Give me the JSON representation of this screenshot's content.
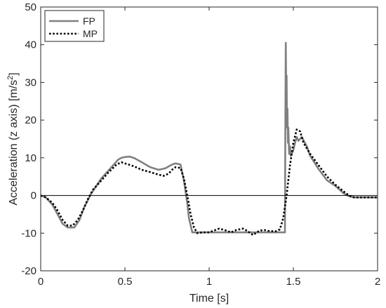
{
  "chart_data": {
    "type": "line",
    "xlabel": "Time [s]",
    "ylabel_main": "Acceleration (z axis) [m/s",
    "ylabel_sup": "2",
    "ylabel_end": "]",
    "xlim": [
      0,
      2
    ],
    "ylim": [
      -20,
      50
    ],
    "xticks": [
      0,
      0.5,
      1,
      1.5,
      2
    ],
    "xtick_labels": [
      "0",
      "0.5",
      "1",
      "1.5",
      "2"
    ],
    "yticks": [
      -20,
      -10,
      0,
      10,
      20,
      30,
      40,
      50
    ],
    "ytick_labels": [
      "-20",
      "-10",
      "0",
      "10",
      "20",
      "30",
      "40",
      "50"
    ],
    "reference_line_y": 0,
    "grid": false,
    "legend_position": "top-left",
    "series": [
      {
        "name": "FP",
        "color": "#808080",
        "style": "solid",
        "x": [
          0,
          0.03,
          0.07,
          0.1,
          0.13,
          0.16,
          0.2,
          0.23,
          0.26,
          0.3,
          0.33,
          0.36,
          0.4,
          0.43,
          0.46,
          0.48,
          0.5,
          0.53,
          0.56,
          0.6,
          0.65,
          0.7,
          0.74,
          0.78,
          0.8,
          0.83,
          0.85,
          0.87,
          0.88,
          0.9,
          0.95,
          1.0,
          1.1,
          1.2,
          1.3,
          1.4,
          1.45,
          1.452,
          1.455,
          1.458,
          1.46,
          1.462,
          1.465,
          1.468,
          1.47,
          1.475,
          1.48,
          1.485,
          1.49,
          1.5,
          1.51,
          1.52,
          1.53,
          1.55,
          1.58,
          1.6,
          1.65,
          1.7,
          1.75,
          1.8,
          1.83,
          1.86,
          1.9,
          1.95,
          2.0
        ],
        "y": [
          0,
          -0.5,
          -2.5,
          -5,
          -7.5,
          -8.5,
          -8.5,
          -6.5,
          -3,
          0.5,
          2.5,
          4.5,
          6.5,
          8,
          9.5,
          10,
          10.2,
          10.3,
          9.8,
          8.8,
          7.5,
          6.8,
          7.2,
          8.2,
          8.5,
          8.2,
          4,
          -2,
          -6,
          -9.8,
          -9.8,
          -9.8,
          -9.8,
          -9.8,
          -9.8,
          -9.8,
          -9.8,
          15,
          40.5,
          25,
          31.8,
          18,
          23,
          14,
          18,
          11,
          13,
          10.5,
          11,
          12,
          14,
          15.5,
          14.5,
          15.5,
          13,
          10.5,
          7,
          4,
          2.5,
          0.5,
          -0.2,
          -0.5,
          -0.5,
          -0.5,
          -0.5
        ]
      },
      {
        "name": "MP",
        "color": "#000000",
        "style": "dotted",
        "x": [
          0,
          0.03,
          0.07,
          0.1,
          0.13,
          0.16,
          0.19,
          0.22,
          0.25,
          0.28,
          0.31,
          0.35,
          0.4,
          0.45,
          0.48,
          0.5,
          0.55,
          0.6,
          0.65,
          0.7,
          0.73,
          0.76,
          0.78,
          0.8,
          0.83,
          0.85,
          0.87,
          0.89,
          0.91,
          0.93,
          0.96,
          1.0,
          1.03,
          1.06,
          1.1,
          1.13,
          1.16,
          1.2,
          1.23,
          1.26,
          1.3,
          1.33,
          1.36,
          1.4,
          1.42,
          1.44,
          1.46,
          1.48,
          1.5,
          1.52,
          1.54,
          1.56,
          1.6,
          1.65,
          1.7,
          1.75,
          1.8,
          1.83,
          1.86,
          1.9,
          1.95,
          2.0
        ],
        "y": [
          0,
          -0.5,
          -2,
          -4,
          -6.5,
          -8,
          -8,
          -6.5,
          -4,
          -1,
          1.5,
          3.5,
          6,
          8.2,
          8.8,
          8.5,
          7.8,
          6.8,
          6.2,
          5.5,
          5.2,
          5.8,
          6.8,
          7.5,
          7.3,
          4.5,
          0,
          -5,
          -8.5,
          -10,
          -9.8,
          -9.8,
          -9.3,
          -8.8,
          -9.3,
          -9.8,
          -9.2,
          -8.8,
          -9.5,
          -10.5,
          -9.3,
          -9.2,
          -9.5,
          -9.5,
          -9,
          -6,
          0,
          8,
          14,
          17.5,
          17,
          14,
          11,
          8,
          5,
          2.8,
          1,
          0,
          -0.5,
          -0.5,
          -0.5,
          -0.5
        ]
      }
    ]
  }
}
